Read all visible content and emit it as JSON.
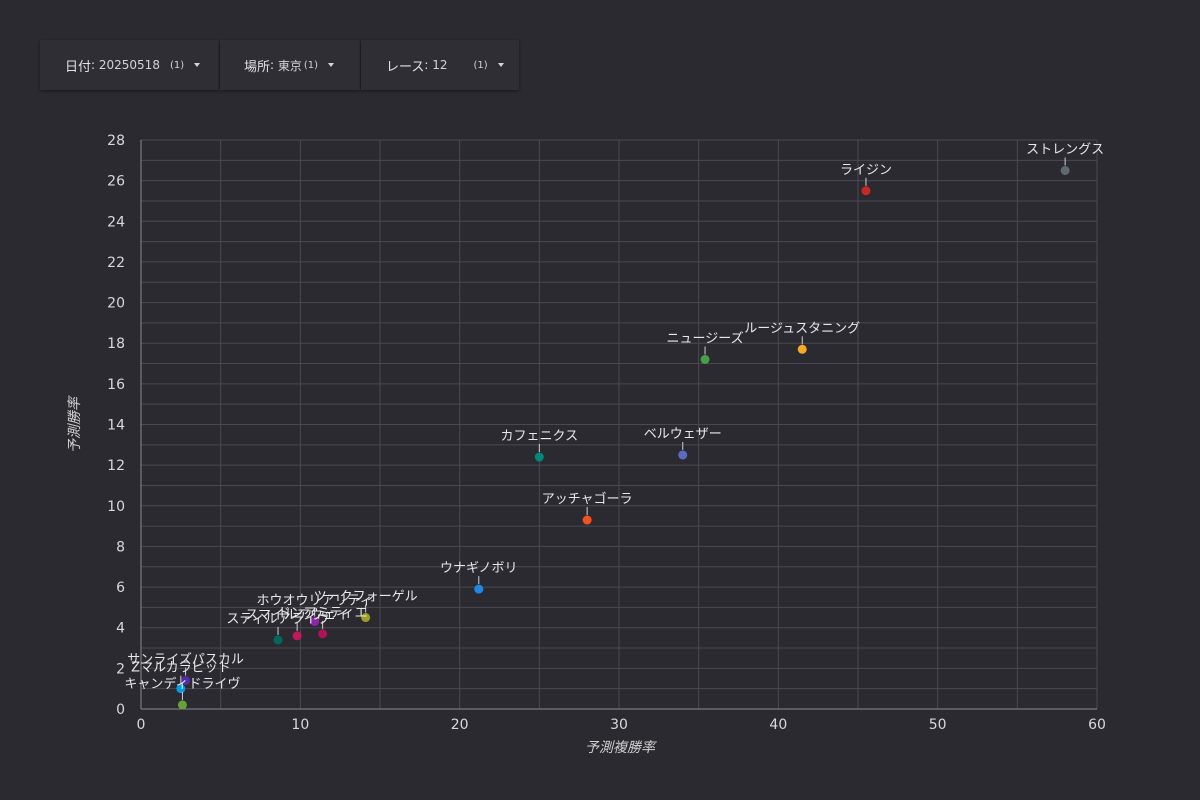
{
  "filters": [
    {
      "label": "日付",
      "value": "20250518",
      "count": "(1)"
    },
    {
      "label": "場所",
      "value": "東京",
      "count": "(1)"
    },
    {
      "label": "レース",
      "value": "12",
      "count": "(1)"
    }
  ],
  "chart_data": {
    "type": "scatter",
    "xlabel": "予測複勝率",
    "ylabel": "予測勝率",
    "xlim": [
      0,
      60
    ],
    "ylim": [
      0,
      28
    ],
    "x_ticks": [
      0,
      10,
      20,
      30,
      40,
      50,
      60
    ],
    "y_ticks": [
      0,
      2,
      4,
      6,
      8,
      10,
      12,
      14,
      16,
      18,
      20,
      22,
      24,
      26,
      28
    ],
    "grid": true,
    "points": [
      {
        "label": "ストレングス",
        "x": 58.0,
        "y": 26.5,
        "color": "#5d6b70"
      },
      {
        "label": "ライジン",
        "x": 45.5,
        "y": 25.5,
        "color": "#c62828"
      },
      {
        "label": "ルージュスタニング",
        "x": 41.5,
        "y": 17.7,
        "color": "#f9a825"
      },
      {
        "label": "ニュージーズ",
        "x": 35.4,
        "y": 17.2,
        "color": "#43a047"
      },
      {
        "label": "ベルウェザー",
        "x": 34.0,
        "y": 12.5,
        "color": "#5c6bc0"
      },
      {
        "label": "カフェニクス",
        "x": 25.0,
        "y": 12.4,
        "color": "#00897b"
      },
      {
        "label": "アッチャゴーラ",
        "x": 28.0,
        "y": 9.3,
        "color": "#f4511e"
      },
      {
        "label": "ウナギノボリ",
        "x": 21.2,
        "y": 5.9,
        "color": "#1e88e5"
      },
      {
        "label": "ツークフォーゲル",
        "x": 14.1,
        "y": 4.5,
        "color": "#9e9d24"
      },
      {
        "label": "ドンアミティエ",
        "x": 11.4,
        "y": 3.7,
        "color": "#ad1457"
      },
      {
        "label": "ホウオウリアリティ",
        "x": 10.9,
        "y": 4.3,
        "color": "#8e24aa"
      },
      {
        "label": "スマイルアウェイ",
        "x": 9.8,
        "y": 3.6,
        "color": "#c2185b"
      },
      {
        "label": "スティルアライヴ",
        "x": 8.6,
        "y": 3.4,
        "color": "#00695c"
      },
      {
        "label": "サンライズパスカル",
        "x": 2.8,
        "y": 1.4,
        "color": "#512da8"
      },
      {
        "label": "Zマルカラビット",
        "x": 2.5,
        "y": 1.0,
        "color": "#039be5"
      },
      {
        "label": "キャンディドライヴ",
        "x": 2.6,
        "y": 0.2,
        "color": "#689f38"
      }
    ]
  }
}
